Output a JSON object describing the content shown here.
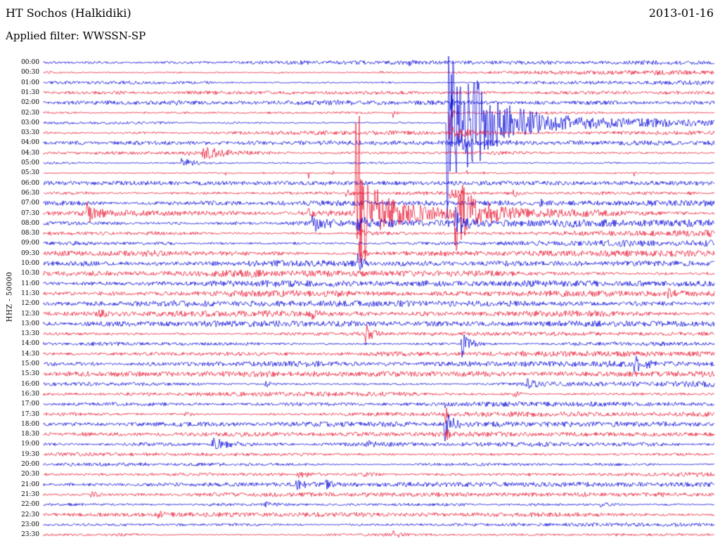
{
  "header": {
    "station": "HT Sochos (Halkidiki)",
    "date": "2013-01-16",
    "filter_label": "Applied filter: WWSSN-SP"
  },
  "axis": {
    "channel_label": "HHZ - 50000"
  },
  "chart_data": {
    "type": "line",
    "subtype": "helicorder-seismogram",
    "title": "HT Sochos (Halkidiki)",
    "date": "2013-01-16",
    "filter": "WWSSN-SP",
    "channel": "HHZ",
    "scale": 50000,
    "minutes_per_row": 30,
    "rows_count": 48,
    "legend_position": "none",
    "grid": false,
    "colors": {
      "blue": "#0000d8",
      "red": "#e8112d"
    },
    "major_event_rows": [
      "03:00",
      "07:30"
    ],
    "rows": [
      {
        "label": "00:00",
        "color": "blue",
        "noise": 1.7,
        "events": [
          {
            "t": 0.545,
            "amp": 4,
            "dec": 0.004
          },
          {
            "t": 0.18,
            "amp": 3,
            "dec": 0.006
          }
        ]
      },
      {
        "label": "00:30",
        "color": "red",
        "noise": 1.8,
        "events": [
          {
            "t": 0.5,
            "amp": 3,
            "dec": 0.008
          }
        ]
      },
      {
        "label": "01:00",
        "color": "blue",
        "noise": 1.8,
        "events": []
      },
      {
        "label": "01:30",
        "color": "red",
        "noise": 1.9,
        "events": [
          {
            "t": 0.36,
            "amp": 4,
            "dec": 0.008
          }
        ]
      },
      {
        "label": "02:00",
        "color": "blue",
        "noise": 1.9,
        "events": [
          {
            "t": 0.606,
            "amp": 24,
            "dec": 0.002
          }
        ]
      },
      {
        "label": "02:30",
        "color": "red",
        "noise": 2.0,
        "events": [
          {
            "t": 0.52,
            "amp": 10,
            "dec": 0.004
          },
          {
            "t": 0.604,
            "amp": 80,
            "dec": 0.0025
          }
        ]
      },
      {
        "label": "03:00",
        "color": "blue",
        "noise": 2.0,
        "events": [
          {
            "t": 0.6,
            "amp": 185,
            "dec": 0.02
          },
          {
            "t": 0.63,
            "amp": 40,
            "dec": 0.06
          },
          {
            "t": 0.63,
            "amp": 12,
            "dec": 0.25
          }
        ]
      },
      {
        "label": "03:30",
        "color": "red",
        "noise": 2.1,
        "events": [
          {
            "t": 0.61,
            "amp": 9,
            "dec": 0.02
          }
        ]
      },
      {
        "label": "04:00",
        "color": "blue",
        "noise": 2.0,
        "events": [
          {
            "t": 0.617,
            "amp": 14,
            "dec": 0.015
          }
        ]
      },
      {
        "label": "04:30",
        "color": "red",
        "noise": 1.9,
        "events": [
          {
            "t": 0.235,
            "amp": 9,
            "dec": 0.05
          },
          {
            "t": 0.21,
            "amp": 5,
            "dec": 0.01
          }
        ]
      },
      {
        "label": "05:00",
        "color": "blue",
        "noise": 1.9,
        "events": [
          {
            "t": 0.205,
            "amp": 7,
            "dec": 0.02
          }
        ]
      },
      {
        "label": "05:30",
        "color": "red",
        "noise": 0.6,
        "events": [
          {
            "t": 0.27,
            "amp": 9,
            "dec": 0.0012
          },
          {
            "t": 0.325,
            "amp": 7,
            "dec": 0.0012
          },
          {
            "t": 0.395,
            "amp": 8,
            "dec": 0.0012
          },
          {
            "t": 0.43,
            "amp": 10,
            "dec": 0.0012
          },
          {
            "t": 0.63,
            "amp": 8,
            "dec": 0.0012
          },
          {
            "t": 0.655,
            "amp": 6,
            "dec": 0.0012
          },
          {
            "t": 0.88,
            "amp": 6,
            "dec": 0.0012
          }
        ]
      },
      {
        "label": "06:00",
        "color": "blue",
        "noise": 2.9,
        "flat": true,
        "events": []
      },
      {
        "label": "06:30",
        "color": "red",
        "noise": 2.6,
        "events": [
          {
            "t": 0.45,
            "amp": 7,
            "dec": 0.01
          },
          {
            "t": 0.605,
            "amp": 9,
            "dec": 0.012
          },
          {
            "t": 0.7,
            "amp": 7,
            "dec": 0.008
          }
        ]
      },
      {
        "label": "07:00",
        "color": "blue",
        "noise": 2.9,
        "events": [
          {
            "t": 0.74,
            "amp": 5,
            "dec": 0.01
          }
        ]
      },
      {
        "label": "07:30",
        "color": "red",
        "noise": 3.0,
        "events": [
          {
            "t": 0.063,
            "amp": 16,
            "dec": 0.012
          },
          {
            "t": 0.39,
            "amp": 8,
            "dec": 0.01
          },
          {
            "t": 0.464,
            "amp": 230,
            "dec": 0.005
          },
          {
            "t": 0.468,
            "amp": 70,
            "dec": 0.02
          },
          {
            "t": 0.47,
            "amp": 18,
            "dec": 0.12
          },
          {
            "t": 0.613,
            "amp": 55,
            "dec": 0.012
          },
          {
            "t": 0.62,
            "amp": 18,
            "dec": 0.05
          }
        ]
      },
      {
        "label": "08:00",
        "color": "blue",
        "noise": 3.0,
        "events": [
          {
            "t": 0.4,
            "amp": 11,
            "dec": 0.018
          },
          {
            "t": 0.466,
            "amp": 14,
            "dec": 0.012
          },
          {
            "t": 0.614,
            "amp": 28,
            "dec": 0.008
          }
        ]
      },
      {
        "label": "08:30",
        "color": "red",
        "noise": 2.8,
        "events": [
          {
            "t": 0.47,
            "amp": 8,
            "dec": 0.008
          }
        ]
      },
      {
        "label": "09:00",
        "color": "blue",
        "noise": 2.8,
        "events": []
      },
      {
        "label": "09:30",
        "color": "red",
        "noise": 2.8,
        "events": [
          {
            "t": 0.468,
            "amp": 24,
            "dec": 0.006
          }
        ]
      },
      {
        "label": "10:00",
        "color": "blue",
        "noise": 2.8,
        "events": [
          {
            "t": 0.468,
            "amp": 16,
            "dec": 0.006
          }
        ]
      },
      {
        "label": "10:30",
        "color": "red",
        "noise": 3.0,
        "events": []
      },
      {
        "label": "11:00",
        "color": "blue",
        "noise": 2.6,
        "events": []
      },
      {
        "label": "11:30",
        "color": "red",
        "noise": 2.6,
        "events": [
          {
            "t": 0.93,
            "amp": 5,
            "dec": 0.01
          }
        ]
      },
      {
        "label": "12:00",
        "color": "blue",
        "noise": 2.4,
        "events": []
      },
      {
        "label": "12:30",
        "color": "red",
        "noise": 2.4,
        "events": [
          {
            "t": 0.08,
            "amp": 5,
            "dec": 0.01
          },
          {
            "t": 0.4,
            "amp": 5,
            "dec": 0.008
          }
        ]
      },
      {
        "label": "13:00",
        "color": "blue",
        "noise": 2.4,
        "events": []
      },
      {
        "label": "13:30",
        "color": "red",
        "noise": 2.3,
        "events": [
          {
            "t": 0.478,
            "amp": 16,
            "dec": 0.01
          }
        ]
      },
      {
        "label": "14:00",
        "color": "blue",
        "noise": 2.3,
        "events": [
          {
            "t": 0.622,
            "amp": 20,
            "dec": 0.012
          }
        ]
      },
      {
        "label": "14:30",
        "color": "red",
        "noise": 2.2,
        "events": []
      },
      {
        "label": "15:00",
        "color": "blue",
        "noise": 2.4,
        "events": [
          {
            "t": 0.88,
            "amp": 9,
            "dec": 0.02
          }
        ]
      },
      {
        "label": "15:30",
        "color": "red",
        "noise": 2.4,
        "events": []
      },
      {
        "label": "16:00",
        "color": "blue",
        "noise": 2.2,
        "events": [
          {
            "t": 0.33,
            "amp": 5,
            "dec": 0.01
          },
          {
            "t": 0.72,
            "amp": 6,
            "dec": 0.012
          }
        ]
      },
      {
        "label": "16:30",
        "color": "red",
        "noise": 2.2,
        "events": [
          {
            "t": 0.7,
            "amp": 5,
            "dec": 0.01
          }
        ]
      },
      {
        "label": "17:00",
        "color": "blue",
        "noise": 2.0,
        "events": [
          {
            "t": 0.598,
            "amp": 10,
            "dec": 0.002
          }
        ]
      },
      {
        "label": "17:30",
        "color": "red",
        "noise": 2.0,
        "events": [
          {
            "t": 0.598,
            "amp": 55,
            "dec": 0.0018
          },
          {
            "t": 0.21,
            "amp": 4,
            "dec": 0.008
          }
        ]
      },
      {
        "label": "18:00",
        "color": "blue",
        "noise": 2.0,
        "events": [
          {
            "t": 0.597,
            "amp": 26,
            "dec": 0.01
          }
        ]
      },
      {
        "label": "18:30",
        "color": "red",
        "noise": 2.0,
        "events": [
          {
            "t": 0.6,
            "amp": 8,
            "dec": 0.004
          }
        ]
      },
      {
        "label": "19:00",
        "color": "blue",
        "noise": 1.9,
        "events": [
          {
            "t": 0.25,
            "amp": 8,
            "dec": 0.03
          },
          {
            "t": 0.48,
            "amp": 5,
            "dec": 0.01
          }
        ]
      },
      {
        "label": "19:30",
        "color": "red",
        "noise": 1.9,
        "events": [
          {
            "t": 0.6,
            "amp": 5,
            "dec": 0.003
          }
        ]
      },
      {
        "label": "20:00",
        "color": "blue",
        "noise": 1.8,
        "events": []
      },
      {
        "label": "20:30",
        "color": "red",
        "noise": 1.8,
        "events": [
          {
            "t": 0.38,
            "amp": 4,
            "dec": 0.01
          },
          {
            "t": 0.47,
            "amp": 4,
            "dec": 0.01
          }
        ]
      },
      {
        "label": "21:00",
        "color": "blue",
        "noise": 1.9,
        "events": [
          {
            "t": 0.375,
            "amp": 9,
            "dec": 0.015
          },
          {
            "t": 0.42,
            "amp": 5,
            "dec": 0.01
          }
        ]
      },
      {
        "label": "21:30",
        "color": "red",
        "noise": 1.8,
        "events": [
          {
            "t": 0.07,
            "amp": 4,
            "dec": 0.008
          }
        ]
      },
      {
        "label": "22:00",
        "color": "blue",
        "noise": 2.0,
        "events": [
          {
            "t": 0.33,
            "amp": 4,
            "dec": 0.01
          },
          {
            "t": 0.83,
            "amp": 4,
            "dec": 0.01
          }
        ]
      },
      {
        "label": "22:30",
        "color": "red",
        "noise": 1.8,
        "events": [
          {
            "t": 0.17,
            "amp": 4,
            "dec": 0.008
          }
        ]
      },
      {
        "label": "23:00",
        "color": "blue",
        "noise": 1.8,
        "events": []
      },
      {
        "label": "23:30",
        "color": "red",
        "noise": 1.8,
        "events": [
          {
            "t": 0.52,
            "amp": 5,
            "dec": 0.01
          }
        ]
      }
    ]
  }
}
